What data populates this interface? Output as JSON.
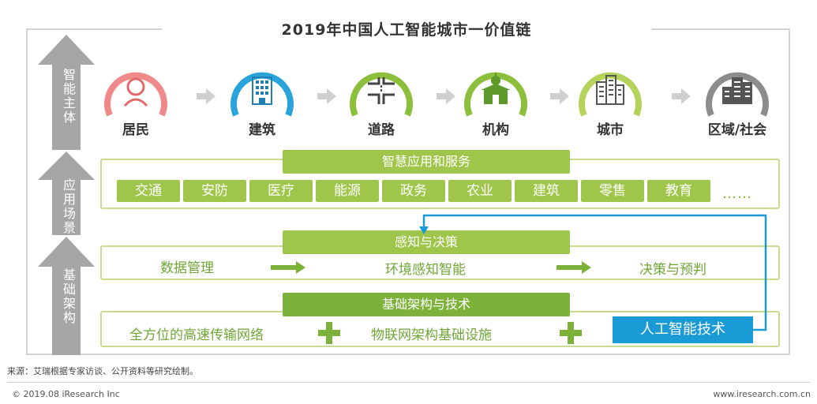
{
  "title": "2019年中国人工智能城市一价值链",
  "left_axis": {
    "top_label": "智能主体",
    "middle_label": "应用场景",
    "bottom_label": "基础架构"
  },
  "actors": [
    {
      "label": "居民",
      "icon": "resident-icon",
      "color": "#f08a8a"
    },
    {
      "label": "建筑",
      "icon": "building-icon",
      "color": "#29a3d9"
    },
    {
      "label": "道路",
      "icon": "road-icon",
      "color": "#8cbf3c"
    },
    {
      "label": "机构",
      "icon": "institution-icon",
      "color": "#8cbf3c"
    },
    {
      "label": "城市",
      "icon": "city-icon",
      "color": "#b5d35a"
    },
    {
      "label": "区域/社会",
      "icon": "region-icon",
      "color": "#8c8c8c"
    }
  ],
  "applications": {
    "title": "智慧应用和服务",
    "items": [
      "交通",
      "安防",
      "医疗",
      "能源",
      "政务",
      "农业",
      "建筑",
      "零售",
      "教育"
    ],
    "more": "……"
  },
  "perception": {
    "title": "感知与决策",
    "steps": [
      "数据管理",
      "环境感知智能",
      "决策与预判"
    ]
  },
  "infrastructure": {
    "title": "基础架构与技术",
    "items": [
      "全方位的高速传输网络",
      "物联网架构基础设施"
    ],
    "highlight": "人工智能技术"
  },
  "colors": {
    "green_band": "#9fc64a",
    "dark_green_band": "#7db23a",
    "light_green_text": "#6fa636",
    "blue_accent": "#1a9bd6",
    "grey_arrow": "#a6a6a6",
    "flow_arrow": "#cfcfcf"
  },
  "source": "来源：艾瑞根据专家访谈、公开资料等研究绘制。",
  "footer": {
    "copyright": "© 2019.08 iResearch Inc",
    "website": "www.iresearch.com.cn"
  }
}
